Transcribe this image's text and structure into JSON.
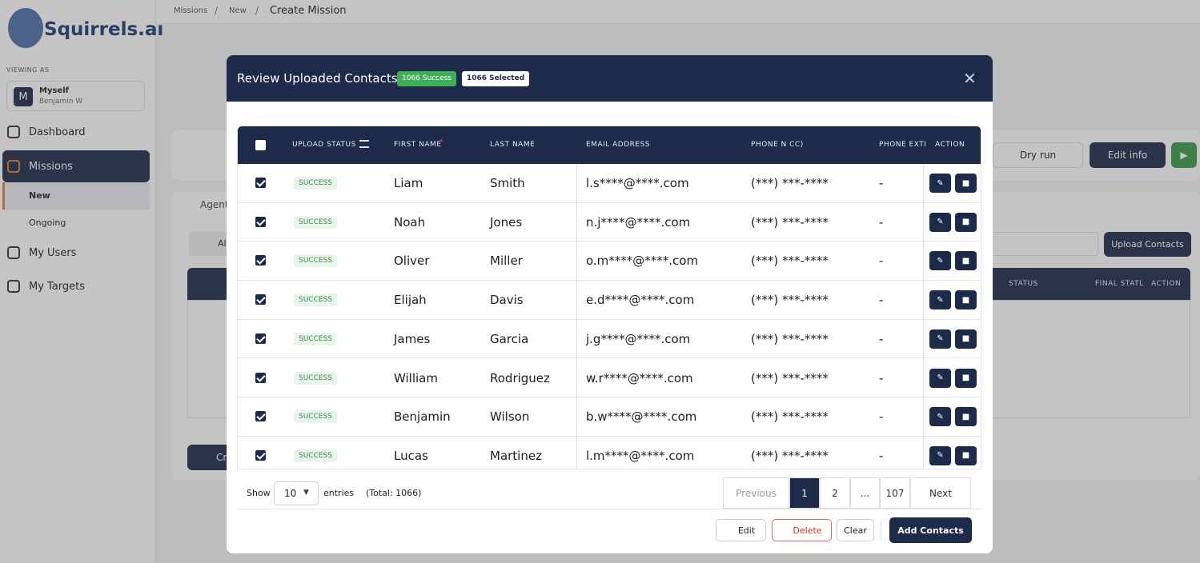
{
  "sidebar": {
    "brand": "Squirrels.ai",
    "viewing_as": "VIEWING AS",
    "user": {
      "initial": "M",
      "name": "Myself",
      "subtitle": "Benjamin W"
    },
    "nav": [
      "Dashboard",
      "Missions",
      "New",
      "Ongoing",
      "My Users",
      "My Targets"
    ]
  },
  "breadcrumb": [
    "Missions",
    "New",
    "Create Mission"
  ],
  "background": {
    "buttons": [
      "Dry run",
      "Edit info",
      "Upload Contacts"
    ],
    "tab": "Agent",
    "filter": "Al",
    "table_headers": [
      "STATUS",
      "FINAL STATL",
      "ACTION"
    ],
    "back_button": "Cr"
  },
  "modal": {
    "title": "Review Uploaded Contacts",
    "badges": [
      "1066 Success",
      "1066 Selected"
    ],
    "columns": [
      "UPLOAD STATUS",
      "FIRST NAME",
      "LAST NAME",
      "EMAIL ADDRESS",
      "PHONE N CC)",
      "PHONE EXTI",
      "ACTION"
    ],
    "required_mark": "*",
    "rows": [
      [
        "SUCCESS",
        "Liam",
        "Smith",
        "l.s****@****.com",
        "(***) ***-****",
        "-"
      ],
      [
        "SUCCESS",
        "Noah",
        "Jones",
        "n.j****@****.com",
        "(***) ***-****",
        "-"
      ],
      [
        "SUCCESS",
        "Oliver",
        "Miller",
        "o.m****@****.com",
        "(***) ***-****",
        "-"
      ],
      [
        "SUCCESS",
        "Elijah",
        "Davis",
        "e.d****@****.com",
        "(***) ***-****",
        "-"
      ],
      [
        "SUCCESS",
        "James",
        "Garcia",
        "j.g****@****.com",
        "(***) ***-****",
        "-"
      ],
      [
        "SUCCESS",
        "William",
        "Rodriguez",
        "w.r****@****.com",
        "(***) ***-****",
        "-"
      ],
      [
        "SUCCESS",
        "Benjamin",
        "Wilson",
        "b.w****@****.com",
        "(***) ***-****",
        "-"
      ],
      [
        "SUCCESS",
        "Lucas",
        "Martinez",
        "l.m****@****.com",
        "(***) ***-****",
        "-"
      ]
    ],
    "footer": {
      "show": "Show",
      "page_size": "10",
      "entries": "entries",
      "total": "(Total: 1066)",
      "pagination": [
        "Previous",
        "1",
        "2",
        "...",
        "107",
        "Next"
      ],
      "buttons": [
        "Edit",
        "Delete",
        "Clear",
        "Add Contacts"
      ]
    }
  }
}
